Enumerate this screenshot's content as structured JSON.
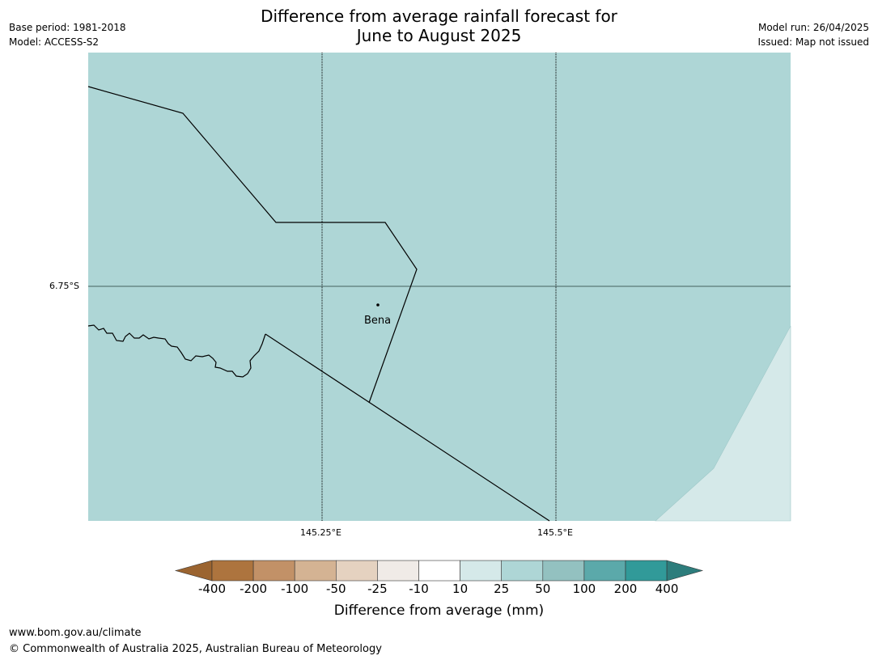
{
  "title": {
    "line1": "Difference from average rainfall forecast for",
    "line2": "June to August 2025"
  },
  "meta_left": {
    "base_period": "Base period: 1981-2018",
    "model": "Model: ACCESS-S2"
  },
  "meta_right": {
    "model_run": "Model run: 26/04/2025",
    "issued": "Issued: Map not issued"
  },
  "map": {
    "lat_label": "6.75°S",
    "lon_labels": [
      "145.25°E",
      "145.5°E"
    ],
    "place_label": "Bena",
    "colors": {
      "main_fill": "#aed6d6",
      "light_fill": "#d5e9e9"
    }
  },
  "colorbar": {
    "title": "Difference from average (mm)",
    "tick_labels": [
      "-400",
      "-200",
      "-100",
      "-50",
      "-25",
      "-10",
      "10",
      "25",
      "50",
      "100",
      "200",
      "400"
    ],
    "colors": {
      "below": "#9b6430",
      "bins": [
        "#ad743e",
        "#c29167",
        "#d4b393",
        "#e5d2c0",
        "#f0ebe7",
        "#ffffff",
        "#d5e9e9",
        "#aed6d6",
        "#93c1c0",
        "#5ba9aa",
        "#319a99"
      ],
      "above": "#2d7d7c"
    }
  },
  "footer": {
    "url": "www.bom.gov.au/climate",
    "copyright": "© Commonwealth of Australia 2025, Australian Bureau of Meteorology"
  }
}
